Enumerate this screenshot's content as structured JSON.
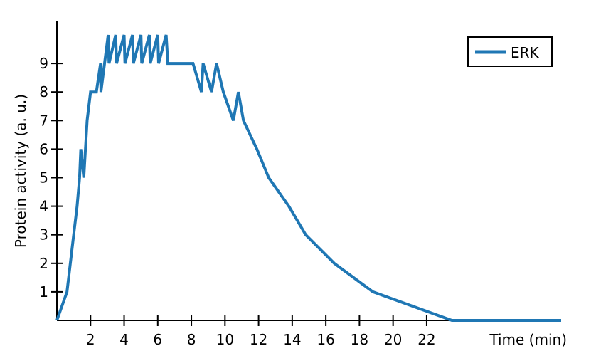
{
  "chart_data": {
    "type": "line",
    "xlabel": "Time (min)",
    "ylabel": "Protein activity (a. u.)",
    "xlim": [
      0,
      30
    ],
    "ylim": [
      0,
      10.5
    ],
    "xticks": [
      2,
      4,
      6,
      8,
      10,
      12,
      14,
      16,
      18,
      20,
      22
    ],
    "yticks": [
      1,
      2,
      3,
      4,
      5,
      6,
      7,
      8,
      9
    ],
    "grid": false,
    "legend_position": "top-right",
    "series": [
      {
        "name": "ERK",
        "color": "#1f77b4",
        "x": [
          0,
          0.6,
          0.8,
          1.0,
          1.2,
          1.35,
          1.42,
          1.6,
          1.8,
          2.0,
          2.35,
          2.6,
          2.62,
          3.05,
          3.1,
          3.5,
          3.55,
          4.0,
          4.05,
          4.5,
          4.55,
          5.0,
          5.05,
          5.5,
          5.55,
          6.0,
          6.05,
          6.5,
          6.6,
          8.1,
          8.6,
          8.7,
          9.2,
          9.5,
          9.9,
          10.5,
          10.8,
          11.1,
          11.9,
          12.6,
          13.8,
          14.8,
          16.5,
          18.8,
          23.5,
          30.0
        ],
        "y": [
          0,
          1,
          2,
          3,
          4,
          5,
          6,
          5,
          7,
          8,
          8,
          9,
          8,
          10,
          9,
          10,
          9,
          10,
          9,
          10,
          9,
          10,
          9,
          10,
          9,
          10,
          9,
          10,
          9,
          9,
          8,
          9,
          8,
          9,
          8,
          7,
          8,
          7,
          6,
          5,
          4,
          3,
          2,
          1,
          0,
          0
        ]
      }
    ]
  }
}
